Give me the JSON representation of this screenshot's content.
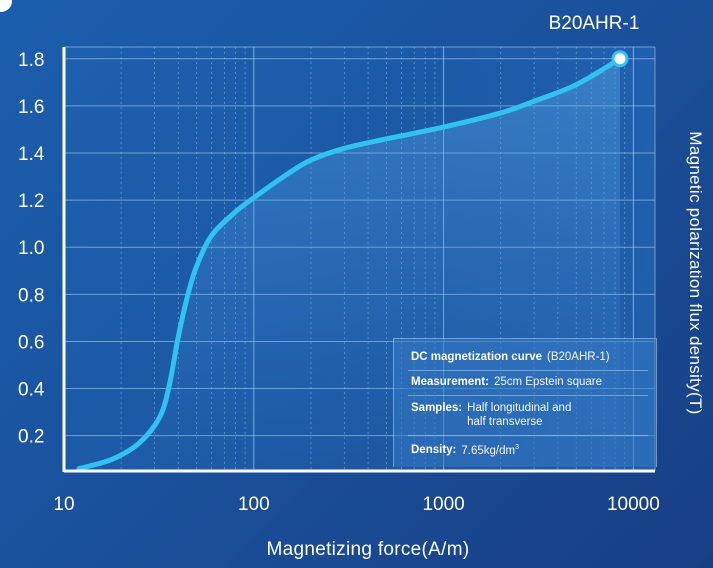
{
  "chart_data": {
    "type": "line",
    "title": "B20AHR-1",
    "xlabel": "Magnetizing force(A/m)",
    "ylabel": "Magnetic polarization flux density(T)",
    "x_scale": "log",
    "xlim": [
      10,
      13000
    ],
    "ylim": [
      0.05,
      1.85
    ],
    "x_ticks": [
      "10",
      "100",
      "1000",
      "10000"
    ],
    "y_ticks": [
      "0.2",
      "0.4",
      "0.6",
      "0.8",
      "1.0",
      "1.2",
      "1.4",
      "1.6",
      "1.8"
    ],
    "grid": true,
    "series": [
      {
        "color": "#2fc3f2",
        "x": [
          12,
          18,
          25,
          32,
          36,
          40,
          45,
          50,
          60,
          80,
          100,
          150,
          200,
          300,
          500,
          1000,
          2000,
          3000,
          5000,
          8500
        ],
        "y": [
          0.06,
          0.1,
          0.17,
          0.28,
          0.42,
          0.62,
          0.8,
          0.92,
          1.05,
          1.15,
          1.21,
          1.31,
          1.37,
          1.42,
          1.46,
          1.51,
          1.57,
          1.62,
          1.69,
          1.8
        ]
      }
    ],
    "annotation": {
      "label": "B20AHR-1",
      "x": 8500,
      "y": 1.8
    }
  },
  "info": {
    "curve_label": "DC magnetization curve",
    "curve_value": "(B20AHR-1)",
    "measurement_label": "Measurement:",
    "measurement_value": "25cm Epstein square",
    "samples_label": "Samples:",
    "samples_value_1": "Half longitudinal and",
    "samples_value_2": "half transverse",
    "density_label": "Density:",
    "density_value": "7.65kg/dm",
    "density_unit_sup": "3"
  }
}
